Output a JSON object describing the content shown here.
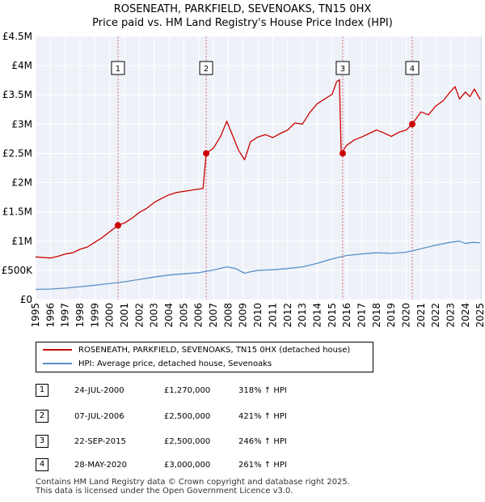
{
  "chart_data": {
    "type": "line",
    "title": "ROSENEATH, PARKFIELD, SEVENOAKS, TN15 0HX",
    "subtitle": "Price paid vs. HM Land Registry's House Price Index (HPI)",
    "x_ticks": [
      "1995",
      "1996",
      "1997",
      "1998",
      "1999",
      "2000",
      "2001",
      "2002",
      "2003",
      "2004",
      "2005",
      "2006",
      "2007",
      "2008",
      "2009",
      "2010",
      "2011",
      "2012",
      "2013",
      "2014",
      "2015",
      "2016",
      "2017",
      "2018",
      "2019",
      "2020",
      "2021",
      "2022",
      "2023",
      "2024",
      "2025"
    ],
    "y_ticks": [
      {
        "value": 0,
        "label": "£0"
      },
      {
        "value": 500000,
        "label": "£500K"
      },
      {
        "value": 1000000,
        "label": "£1M"
      },
      {
        "value": 1500000,
        "label": "£1.5M"
      },
      {
        "value": 2000000,
        "label": "£2M"
      },
      {
        "value": 2500000,
        "label": "£2.5M"
      },
      {
        "value": 3000000,
        "label": "£3M"
      },
      {
        "value": 3500000,
        "label": "£3.5M"
      },
      {
        "value": 4000000,
        "label": "£4M"
      },
      {
        "value": 4500000,
        "label": "£4.5M"
      }
    ],
    "xlim": [
      1995.0,
      2025.1
    ],
    "ylim": [
      0,
      4500000
    ],
    "series": [
      {
        "name": "ROSENEATH, PARKFIELD, SEVENOAKS, TN15 0HX (detached house)",
        "color": "#cc0000",
        "x": [
          1995.0,
          1995.5,
          1996.0,
          1996.5,
          1997.0,
          1997.5,
          1998.0,
          1998.5,
          1999.0,
          1999.5,
          2000.0,
          2000.56,
          2001.0,
          2001.5,
          2002.0,
          2002.5,
          2003.0,
          2003.5,
          2004.0,
          2004.5,
          2005.0,
          2005.5,
          2006.0,
          2006.3,
          2006.51,
          2007.0,
          2007.5,
          2007.9,
          2008.3,
          2008.7,
          2009.1,
          2009.5,
          2010.0,
          2010.5,
          2011.0,
          2011.5,
          2012.0,
          2012.5,
          2013.0,
          2013.5,
          2014.0,
          2014.5,
          2015.0,
          2015.3,
          2015.5,
          2015.62,
          2016.0,
          2016.5,
          2017.0,
          2017.5,
          2018.0,
          2018.5,
          2019.0,
          2019.5,
          2020.0,
          2020.41,
          2021.0,
          2021.5,
          2022.0,
          2022.5,
          2023.0,
          2023.3,
          2023.6,
          2024.0,
          2024.3,
          2024.6,
          2025.0
        ],
        "values": [
          730000,
          720000,
          710000,
          740000,
          780000,
          800000,
          860000,
          900000,
          980000,
          1060000,
          1160000,
          1270000,
          1310000,
          1390000,
          1490000,
          1560000,
          1660000,
          1730000,
          1790000,
          1830000,
          1850000,
          1870000,
          1890000,
          1900000,
          2500000,
          2590000,
          2800000,
          3050000,
          2800000,
          2550000,
          2390000,
          2700000,
          2780000,
          2820000,
          2770000,
          2840000,
          2900000,
          3020000,
          3000000,
          3200000,
          3350000,
          3430000,
          3510000,
          3720000,
          3760000,
          2500000,
          2640000,
          2730000,
          2780000,
          2840000,
          2900000,
          2850000,
          2790000,
          2860000,
          2900000,
          3000000,
          3210000,
          3160000,
          3310000,
          3400000,
          3560000,
          3640000,
          3430000,
          3550000,
          3470000,
          3600000,
          3420000
        ]
      },
      {
        "name": "HPI: Average price, detached house, Sevenoaks",
        "color": "#5b8fc9",
        "x": [
          1995.0,
          1996.0,
          1997.0,
          1998.0,
          1999.0,
          2000.0,
          2001.0,
          2002.0,
          2003.0,
          2004.0,
          2005.0,
          2006.0,
          2007.0,
          2007.9,
          2008.5,
          2009.1,
          2009.6,
          2010.0,
          2011.0,
          2012.0,
          2013.0,
          2014.0,
          2015.0,
          2016.0,
          2017.0,
          2018.0,
          2019.0,
          2020.0,
          2021.0,
          2022.0,
          2023.0,
          2023.6,
          2024.0,
          2024.5,
          2025.0
        ],
        "values": [
          175000,
          180000,
          195000,
          220000,
          245000,
          275000,
          305000,
          345000,
          385000,
          420000,
          440000,
          460000,
          505000,
          560000,
          530000,
          450000,
          480000,
          500000,
          510000,
          530000,
          560000,
          620000,
          695000,
          755000,
          780000,
          800000,
          790000,
          810000,
          870000,
          930000,
          980000,
          1000000,
          960000,
          980000,
          970000
        ]
      }
    ],
    "annotations": [
      {
        "label": "1",
        "x": 2000.56
      },
      {
        "label": "2",
        "x": 2006.51
      },
      {
        "label": "3",
        "x": 2015.72
      },
      {
        "label": "4",
        "x": 2020.41
      }
    ],
    "sale_points": [
      {
        "x": 2000.56,
        "value": 1270000
      },
      {
        "x": 2006.51,
        "value": 2500000
      },
      {
        "x": 2015.72,
        "value": 2500000
      },
      {
        "x": 2020.41,
        "value": 3000000
      }
    ]
  },
  "legend": {
    "property": "ROSENEATH, PARKFIELD, SEVENOAKS, TN15 0HX (detached house)",
    "hpi": "HPI: Average price, detached house, Sevenoaks"
  },
  "transactions": [
    {
      "num": "1",
      "date": "24-JUL-2000",
      "price": "£1,270,000",
      "hpi": "318% ↑ HPI"
    },
    {
      "num": "2",
      "date": "07-JUL-2006",
      "price": "£2,500,000",
      "hpi": "421% ↑ HPI"
    },
    {
      "num": "3",
      "date": "22-SEP-2015",
      "price": "£2,500,000",
      "hpi": "246% ↑ HPI"
    },
    {
      "num": "4",
      "date": "28-MAY-2020",
      "price": "£3,000,000",
      "hpi": "261% ↑ HPI"
    }
  ],
  "footer": {
    "line1": "Contains HM Land Registry data © Crown copyright and database right 2025.",
    "line2": "This data is licensed under the Open Government Licence v3.0."
  }
}
